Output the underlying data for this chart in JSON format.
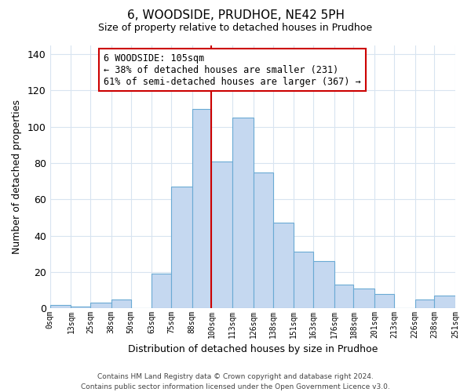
{
  "title": "6, WOODSIDE, PRUDHOE, NE42 5PH",
  "subtitle": "Size of property relative to detached houses in Prudhoe",
  "xlabel": "Distribution of detached houses by size in Prudhoe",
  "ylabel": "Number of detached properties",
  "bin_labels": [
    "0sqm",
    "13sqm",
    "25sqm",
    "38sqm",
    "50sqm",
    "63sqm",
    "75sqm",
    "88sqm",
    "100sqm",
    "113sqm",
    "126sqm",
    "138sqm",
    "151sqm",
    "163sqm",
    "176sqm",
    "188sqm",
    "201sqm",
    "213sqm",
    "226sqm",
    "238sqm",
    "251sqm"
  ],
  "bin_edges": [
    0,
    13,
    25,
    38,
    50,
    63,
    75,
    88,
    100,
    113,
    126,
    138,
    151,
    163,
    176,
    188,
    201,
    213,
    226,
    238,
    251
  ],
  "values": [
    2,
    1,
    3,
    5,
    0,
    19,
    67,
    110,
    81,
    105,
    75,
    47,
    31,
    26,
    13,
    11,
    8,
    0,
    5,
    7
  ],
  "bar_color": "#c5d8f0",
  "bar_edgecolor": "#6aaad4",
  "property_line_x": 100,
  "property_line_color": "#cc0000",
  "ylim": [
    0,
    145
  ],
  "yticks": [
    0,
    20,
    40,
    60,
    80,
    100,
    120,
    140
  ],
  "annotation_title": "6 WOODSIDE: 105sqm",
  "annotation_line1": "← 38% of detached houses are smaller (231)",
  "annotation_line2": "61% of semi-detached houses are larger (367) →",
  "annotation_box_color": "#ffffff",
  "annotation_box_edgecolor": "#cc0000",
  "footer_line1": "Contains HM Land Registry data © Crown copyright and database right 2024.",
  "footer_line2": "Contains public sector information licensed under the Open Government Licence v3.0.",
  "background_color": "#ffffff",
  "grid_color": "#d8e4f0"
}
